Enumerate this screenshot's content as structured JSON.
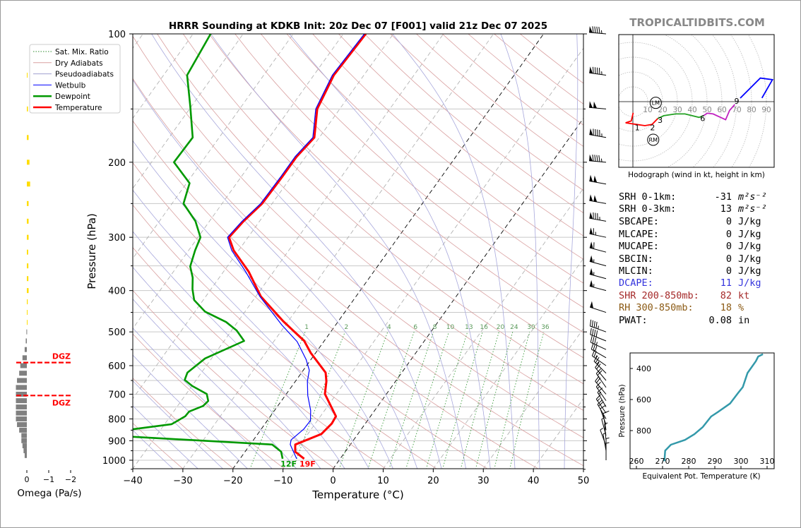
{
  "header": {
    "title": "HRRR Sounding at KDKB Init: 20z Dec 07 [F001] valid 21z Dec 07 2025",
    "brand": "TROPICALTIDBITS.COM"
  },
  "legend": [
    {
      "label": "Sat. Mix. Ratio",
      "color": "#2e8b2e",
      "style": "dotted"
    },
    {
      "label": "Dry Adiabats",
      "color": "#d9a0a0",
      "style": "thin"
    },
    {
      "label": "Pseudoadiabats",
      "color": "#a0a0d0",
      "style": "thin"
    },
    {
      "label": "Wetbulb",
      "color": "#0000ff",
      "style": "medium"
    },
    {
      "label": "Dewpoint",
      "color": "#009900",
      "style": "thick"
    },
    {
      "label": "Temperature",
      "color": "#ff0000",
      "style": "thick"
    }
  ],
  "stats": [
    {
      "label": "SRH 0-1km:",
      "value": "-31",
      "unit": "m²s⁻²",
      "color": "#000000"
    },
    {
      "label": "SRH 0-3km:",
      "value": "13",
      "unit": "m²s⁻²",
      "color": "#000000"
    },
    {
      "label": "SBCAPE:",
      "value": "0",
      "unit": "J/kg",
      "color": "#000000"
    },
    {
      "label": "MLCAPE:",
      "value": "0",
      "unit": "J/kg",
      "color": "#000000"
    },
    {
      "label": "MUCAPE:",
      "value": "0",
      "unit": "J/kg",
      "color": "#000000"
    },
    {
      "label": "SBCIN:",
      "value": "0",
      "unit": "J/kg",
      "color": "#000000"
    },
    {
      "label": "MLCIN:",
      "value": "0",
      "unit": "J/kg",
      "color": "#000000"
    },
    {
      "label": "DCAPE:",
      "value": "11",
      "unit": "J/kg",
      "color": "#3333dd"
    },
    {
      "label": "SHR 200-850mb:",
      "value": "82",
      "unit": "kt",
      "color": "#a52a2a"
    },
    {
      "label": "RH 300-850mb:",
      "value": "18",
      "unit": "%",
      "color": "#8b5a14"
    },
    {
      "label": "PWAT:",
      "value": "0.08",
      "unit": "in",
      "color": "#000000"
    }
  ],
  "chart_data": [
    {
      "type": "line",
      "name": "skew-t",
      "xlabel": "Temperature (°C)",
      "ylabel": "Pressure (hPa)",
      "xlim": [
        -40,
        50
      ],
      "ylim": [
        1050,
        100
      ],
      "x_ticks": [
        "−40",
        "−30",
        "−20",
        "−10",
        "0",
        "10",
        "20",
        "30",
        "40",
        "50"
      ],
      "x_tick_values": [
        -40,
        -30,
        -20,
        -10,
        0,
        10,
        20,
        30,
        40,
        50
      ],
      "y_ticks": [
        "100",
        "200",
        "300",
        "400",
        "500",
        "600",
        "700",
        "800",
        "900",
        "1000"
      ],
      "y_tick_values": [
        100,
        200,
        300,
        400,
        500,
        600,
        700,
        800,
        900,
        1000
      ],
      "mixing_ratio_labels": [
        "1",
        "2",
        "4",
        "6",
        "8",
        "10",
        "13",
        "16",
        "20",
        "24",
        "30",
        "36"
      ],
      "mixing_ratio_values": [
        1,
        2,
        4,
        6,
        8,
        10,
        13,
        16,
        20,
        24,
        30,
        36
      ],
      "surface_labels": {
        "dewpoint": "12F",
        "temperature": "19F"
      },
      "series": [
        {
          "name": "Temperature",
          "color": "#ff0000",
          "p": [
            992,
            955,
            919,
            868,
            820,
            789,
            699,
            653,
            623,
            560,
            525,
            472,
            413,
            361,
            322,
            300,
            275,
            250,
            216,
            194,
            175,
            150,
            125,
            100
          ],
          "t": [
            -7.2,
            -10.0,
            -11.0,
            -7.3,
            -6.7,
            -6.9,
            -12.3,
            -13.8,
            -15.2,
            -21,
            -24,
            -31,
            -39,
            -45,
            -51,
            -53.8,
            -53.2,
            -52,
            -51.8,
            -51.8,
            -51,
            -54.5,
            -56,
            -55.5
          ]
        },
        {
          "name": "Wetbulb",
          "color": "#0000ff",
          "p": [
            992,
            919,
            896,
            846,
            807,
            764,
            705,
            653,
            615,
            580,
            527,
            482,
            413,
            361,
            322,
            300,
            275,
            250,
            216,
            194,
            175,
            150,
            125,
            100
          ],
          "t": [
            -8.7,
            -12,
            -12.5,
            -11.5,
            -11.4,
            -12.8,
            -15.5,
            -17.6,
            -18.8,
            -21,
            -25.3,
            -30.7,
            -39.2,
            -45.6,
            -51.4,
            -54.1,
            -53.5,
            -52.3,
            -52.1,
            -52.1,
            -51.3,
            -54.8,
            -56.3,
            -55.8
          ]
        },
        {
          "name": "Dewpoint",
          "color": "#009900",
          "p": [
            992,
            955,
            919,
            881,
            868,
            846,
            823,
            789,
            769,
            746,
            726,
            699,
            670,
            648,
            623,
            577,
            525,
            496,
            474,
            448,
            421,
            397,
            373,
            351,
            322,
            300,
            275,
            250,
            224,
            200,
            175,
            148,
            125,
            100
          ],
          "t": [
            -11.5,
            -12.8,
            -15.6,
            -44.5,
            -60,
            -45.6,
            -38.6,
            -37,
            -36.9,
            -34.9,
            -34.6,
            -35.9,
            -39.9,
            -42.3,
            -42.8,
            -41.3,
            -36,
            -39,
            -42.3,
            -48,
            -51.8,
            -53.7,
            -55.3,
            -57.4,
            -58.7,
            -59.5,
            -62.8,
            -67.7,
            -69.4,
            -75.5,
            -75.3,
            -80.2,
            -85.3,
            -86.5
          ]
        }
      ],
      "wind_barbs": {
        "p": [
          100,
          125,
          150,
          175,
          200,
          225,
          250,
          275,
          300,
          325,
          350,
          375,
          400,
          450,
          500,
          525,
          550,
          575,
          600,
          625,
          650,
          675,
          700,
          725,
          750,
          775,
          800,
          825,
          850,
          875,
          900,
          925,
          950,
          975,
          1000
        ],
        "dir_deg": [
          275,
          278,
          275,
          280,
          275,
          280,
          280,
          280,
          282,
          285,
          285,
          285,
          285,
          288,
          290,
          292,
          295,
          300,
          305,
          315,
          320,
          325,
          320,
          325,
          330,
          325,
          330,
          340,
          350,
          345,
          355,
          340,
          350,
          360,
          360
        ],
        "speed_kt": [
          95,
          95,
          100,
          95,
          95,
          100,
          100,
          85,
          65,
          60,
          55,
          55,
          55,
          50,
          45,
          40,
          35,
          30,
          25,
          25,
          20,
          20,
          20,
          15,
          15,
          15,
          20,
          10,
          10,
          5,
          5,
          5,
          5,
          5,
          5
        ]
      }
    },
    {
      "type": "line",
      "name": "hodograph",
      "caption": "Hodograph (wind in kt, height in km)",
      "ring_labels": [
        "10",
        "20",
        "30",
        "40",
        "50",
        "60",
        "70",
        "80",
        "90"
      ],
      "ring_values": [
        10,
        20,
        30,
        40,
        50,
        60,
        70,
        80,
        90
      ],
      "segments": [
        {
          "layer": "0-3 km",
          "color": "#ff0000",
          "u": [
            0.2,
            -1.1,
            -4.9,
            2.5,
            8.1,
            12.9,
            16.8
          ],
          "v": [
            -7.5,
            -13,
            -14.3,
            -15.4,
            -16.2,
            -15.4,
            -11.4
          ]
        },
        {
          "layer": "3-6 km",
          "color": "#22a022",
          "u": [
            16.8,
            20.8,
            28.7,
            35.1,
            44.6,
            47.5
          ],
          "v": [
            -11.4,
            -9.5,
            -8.3,
            -8.3,
            -10.6,
            -9.5
          ]
        },
        {
          "layer": "6-9 km",
          "color": "#c020c0",
          "u": [
            47.5,
            50.2,
            54.1,
            62.5,
            65.2,
            68.7
          ],
          "v": [
            -9.5,
            -7.8,
            -8.3,
            -12.2,
            -5.9,
            -1.9
          ]
        },
        {
          "layer": "9+ km",
          "color": "#0000ff",
          "u": [
            72.4,
            85.9,
            94.1,
            87
          ],
          "v": [
            2.4,
            15.9,
            14.8,
            2.5
          ]
        }
      ],
      "height_labels": [
        {
          "text": "1",
          "u": 2.9,
          "v": -15.4
        },
        {
          "text": "2",
          "u": 13.3,
          "v": -15.4
        },
        {
          "text": "3",
          "u": 18.4,
          "v": -10.5
        },
        {
          "text": "6",
          "u": 47,
          "v": -9.3
        },
        {
          "text": "9",
          "u": 70,
          "v": 0.5
        }
      ],
      "storm_motion": [
        {
          "text": "LM",
          "u": 15.4,
          "v": -0.8
        },
        {
          "text": "RM",
          "u": 13.7,
          "v": -25.7
        }
      ]
    },
    {
      "type": "line",
      "name": "theta-e profile",
      "xlabel": "Equivalent Pot. Temperature (K)",
      "ylabel": "Pressure (hPa)",
      "xlim": [
        257.5,
        312
      ],
      "ylim": [
        1045,
        300
      ],
      "x_ticks": [
        "260",
        "270",
        "280",
        "290",
        "300",
        "310"
      ],
      "x_tick_values": [
        260,
        270,
        280,
        290,
        300,
        310
      ],
      "y_ticks": [
        "400",
        "600",
        "800"
      ],
      "y_tick_values": [
        400,
        600,
        800
      ],
      "color": "#3399aa",
      "theta_e": [
        270.7,
        271,
        273.2,
        278.6,
        282.2,
        285.4,
        288.6,
        291.3,
        295.8,
        298.9,
        300.7,
        302.5,
        305.7,
        306.6,
        308.4
      ],
      "p": [
        997,
        929,
        891,
        860,
        823,
        777,
        709,
        679,
        626,
        558,
        520,
        429,
        353,
        323,
        308
      ]
    },
    {
      "type": "bar",
      "name": "omega profile",
      "xlabel": "Omega (Pa/s)",
      "x_ticks": [
        "0",
        "−1",
        "−2"
      ],
      "x_tick_values": [
        0,
        -1,
        -2
      ],
      "dgz_label": "DGZ",
      "dgz_p": [
        590,
        705
      ],
      "p": [
        125,
        150,
        175,
        200,
        225,
        250,
        275,
        300,
        325,
        350,
        375,
        400,
        425,
        450,
        475,
        500,
        525,
        550,
        575,
        600,
        625,
        650,
        675,
        700,
        725,
        750,
        775,
        800,
        825,
        850,
        875,
        900,
        925,
        950,
        975
      ],
      "omega": [
        -0.02,
        -0.05,
        -0.08,
        -0.12,
        -0.15,
        -0.08,
        -0.08,
        -0.08,
        -0.06,
        -0.07,
        -0.07,
        -0.08,
        -0.04,
        -0.02,
        -0.01,
        0.02,
        0.05,
        0.1,
        0.2,
        0.3,
        0.35,
        0.45,
        0.5,
        0.5,
        0.5,
        0.5,
        0.5,
        0.5,
        0.45,
        0.35,
        0.25,
        0.25,
        0.2,
        0.15,
        0.1
      ],
      "upward_color": "#ffdd00",
      "downward_color": "#808080"
    }
  ]
}
